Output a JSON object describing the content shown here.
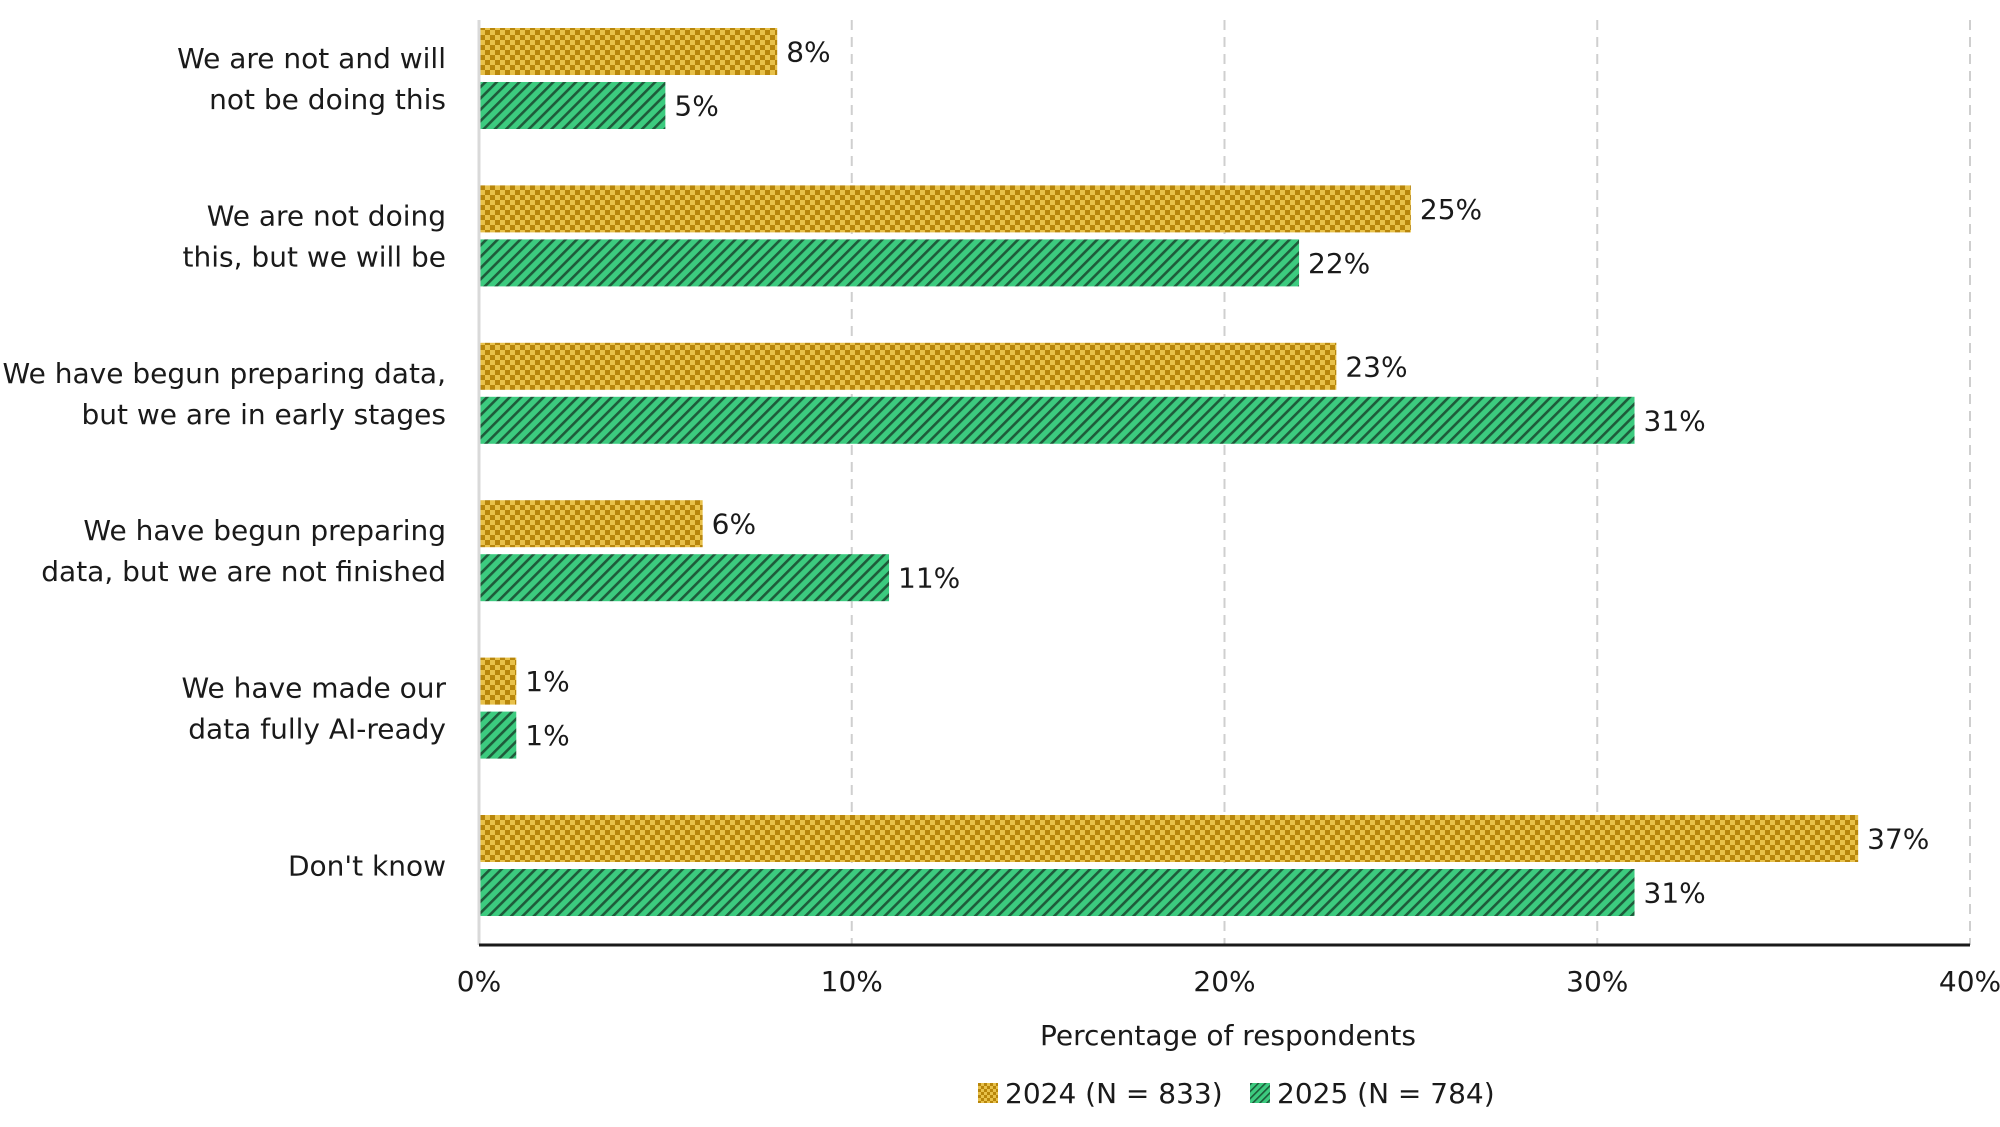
{
  "chart_data": {
    "type": "bar",
    "orientation": "horizontal",
    "categories": [
      [
        "We are not and will",
        "not be doing this"
      ],
      [
        "We are not doing",
        "this, but we will be"
      ],
      [
        "We have begun preparing data,",
        "but we are in early stages"
      ],
      [
        "We have begun preparing",
        "data, but we are not finished"
      ],
      [
        "We have made our",
        "data fully AI-ready"
      ],
      [
        "Don't know"
      ]
    ],
    "series": [
      {
        "name": "2024 (N = 833)",
        "values": [
          8,
          25,
          23,
          6,
          1,
          37
        ],
        "color": "#D4A017",
        "pattern": "checker"
      },
      {
        "name": "2025 (N = 784)",
        "values": [
          5,
          22,
          31,
          11,
          1,
          31
        ],
        "color": "#2EB872",
        "pattern": "diagonal-stripes"
      }
    ],
    "value_suffix": "%",
    "xlabel": "Percentage of respondents",
    "xlim": [
      0,
      40
    ],
    "xticks": [
      0,
      10,
      20,
      30,
      40
    ],
    "tick_labels": [
      "0%",
      "10%",
      "20%",
      "30%",
      "40%"
    ],
    "grid": "vertical-dashed",
    "legend_position": "bottom-center"
  }
}
